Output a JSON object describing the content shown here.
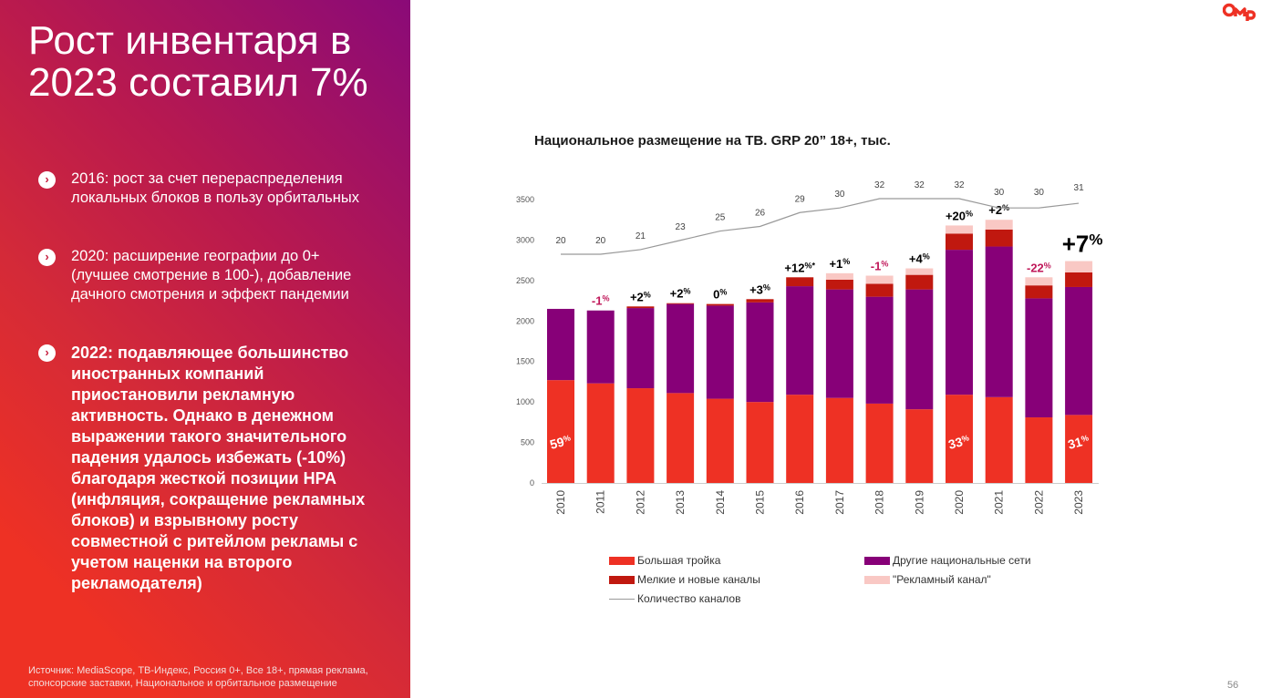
{
  "slide": {
    "title_line1": "Рост инвентаря в",
    "title_line2": "2023 составил 7%",
    "bullets": [
      "2016: рост за счет перераспределения локальных блоков в пользу орбитальных",
      "2020: расширение географии до 0+ (лучшее смотрение в 100-), добавление дачного смотрения и эффект пандемии",
      "2022: подавляющее большинство иностранных компаний приостановили рекламную активность. Однако в денежном выражении такого значительного падения удалось избежать (-10%) благодаря жесткой позиции НРА (инфляция, сокращение рекламных блоков) и взрывному росту совместной с ритейлом рекламы с учетом наценки на второго рекламодателя)"
    ],
    "source": "Источник: MediaScope, ТВ-Индекс, Россия 0+, Все 18+, прямая реклама, спонсорские заставки, Национальное и орбитальное размещение",
    "page_number": "56",
    "logo_text": "OMD",
    "bullet_icon": "chevron-right-circle-icon"
  },
  "chart_data": {
    "type": "bar",
    "stacked": true,
    "title": "Национальное размещение на ТВ. GRP 20” 18+, тыс.",
    "categories": [
      "2010",
      "2011",
      "2012",
      "2013",
      "2014",
      "2015",
      "2016",
      "2017",
      "2018",
      "2019",
      "2020",
      "2021",
      "2022",
      "2023"
    ],
    "ylim": [
      0,
      3500
    ],
    "yticks": [
      "0",
      "500",
      "1000",
      "1500",
      "2000",
      "2500",
      "3000",
      "3500"
    ],
    "grid": false,
    "legend_position": "bottom",
    "series": [
      {
        "name": "Большая тройка",
        "color": "#ee3124",
        "values": [
          1270,
          1230,
          1170,
          1110,
          1040,
          1000,
          1090,
          1050,
          980,
          910,
          1090,
          1060,
          810,
          840
        ]
      },
      {
        "name": "Другие национальные сети",
        "color": "#870078",
        "values": [
          880,
          900,
          990,
          1100,
          1150,
          1230,
          1340,
          1340,
          1320,
          1480,
          1790,
          1860,
          1470,
          1580
        ]
      },
      {
        "name": "Мелкие и новые каналы",
        "color": "#c0180f",
        "values": [
          0,
          0,
          20,
          10,
          20,
          40,
          110,
          120,
          160,
          180,
          200,
          210,
          160,
          180
        ]
      },
      {
        "name": "\"Рекламный канал\"",
        "color": "#f9c8c4",
        "values": [
          0,
          0,
          0,
          0,
          0,
          0,
          0,
          80,
          100,
          80,
          100,
          120,
          100,
          140
        ]
      }
    ],
    "line_series": {
      "name": "Количество каналов",
      "color": "#999999",
      "values": [
        20,
        20,
        21,
        23,
        25,
        26,
        29,
        30,
        32,
        32,
        32,
        30,
        30,
        31
      ]
    },
    "growth_labels": [
      {
        "value": "",
        "sup": ""
      },
      {
        "value": "-1",
        "sup": "%"
      },
      {
        "value": "+2",
        "sup": "%"
      },
      {
        "value": "+2",
        "sup": "%"
      },
      {
        "value": "0",
        "sup": "%"
      },
      {
        "value": "+3",
        "sup": "%"
      },
      {
        "value": "+12",
        "sup": "%*"
      },
      {
        "value": "+1",
        "sup": "%"
      },
      {
        "value": "-1",
        "sup": "%"
      },
      {
        "value": "+4",
        "sup": "%"
      },
      {
        "value": "+20",
        "sup": "%"
      },
      {
        "value": "+2",
        "sup": "%"
      },
      {
        "value": "-22",
        "sup": "%"
      },
      {
        "value": "+7",
        "sup": "%"
      }
    ],
    "share_labels": [
      {
        "year": "2010",
        "value": "59",
        "sup": "%"
      },
      {
        "year": "2020",
        "value": "33",
        "sup": "%"
      },
      {
        "year": "2023",
        "value": "31",
        "sup": "%"
      }
    ],
    "colors": {
      "positive_label": "#000000",
      "negative_label": "#c0185a",
      "share_label": "#ffffff"
    }
  }
}
